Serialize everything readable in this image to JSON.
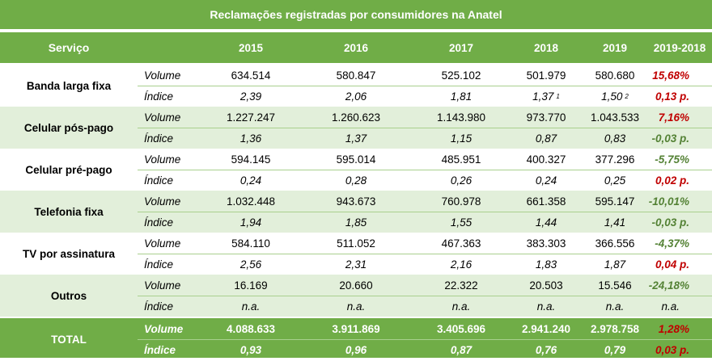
{
  "title": "Reclamações registradas por consumidores na Anatel",
  "colors": {
    "header_green": "#70ad47",
    "shade_green": "#e2efda",
    "bad": "#c00000",
    "good": "#548235"
  },
  "header": {
    "service": "Serviço",
    "y2015": "2015",
    "y2016": "2016",
    "y2017": "2017",
    "y2018": "2018",
    "y2019": "2019",
    "change": "2019-2018"
  },
  "rows": [
    {
      "service": "Banda larga fixa",
      "volume_label": "Volume",
      "index_label": "Índice",
      "volume": [
        "634.514",
        "580.847",
        "525.102",
        "501.979",
        "580.680"
      ],
      "volume_change": "15,68%",
      "volume_change_status": "bad",
      "index": [
        "2,39",
        "2,06",
        "1,81",
        "1,37",
        "1,50"
      ],
      "index_note_2018": "1",
      "index_note_2019": "2",
      "index_change": "0,13 p.",
      "index_change_status": "bad"
    },
    {
      "service": "Celular pós-pago",
      "volume_label": "Volume",
      "index_label": "Índice",
      "volume": [
        "1.227.247",
        "1.260.623",
        "1.143.980",
        "973.770",
        "1.043.533"
      ],
      "volume_change": "7,16%",
      "volume_change_status": "bad",
      "index": [
        "1,36",
        "1,37",
        "1,15",
        "0,87",
        "0,83"
      ],
      "index_change": "-0,03 p.",
      "index_change_status": "good"
    },
    {
      "service": "Celular pré-pago",
      "volume_label": "Volume",
      "index_label": "Índice",
      "volume": [
        "594.145",
        "595.014",
        "485.951",
        "400.327",
        "377.296"
      ],
      "volume_change": "-5,75%",
      "volume_change_status": "good",
      "index": [
        "0,24",
        "0,28",
        "0,26",
        "0,24",
        "0,25"
      ],
      "index_change": "0,02 p.",
      "index_change_status": "bad"
    },
    {
      "service": "Telefonia fixa",
      "volume_label": "Volume",
      "index_label": "Índice",
      "volume": [
        "1.032.448",
        "943.673",
        "760.978",
        "661.358",
        "595.147"
      ],
      "volume_change": "-10,01%",
      "volume_change_status": "good",
      "index": [
        "1,94",
        "1,85",
        "1,55",
        "1,44",
        "1,41"
      ],
      "index_change": "-0,03 p.",
      "index_change_status": "good"
    },
    {
      "service": "TV por assinatura",
      "volume_label": "Volume",
      "index_label": "Índice",
      "volume": [
        "584.110",
        "511.052",
        "467.363",
        "383.303",
        "366.556"
      ],
      "volume_change": "-4,37%",
      "volume_change_status": "good",
      "index": [
        "2,56",
        "2,31",
        "2,16",
        "1,83",
        "1,87"
      ],
      "index_change": "0,04 p.",
      "index_change_status": "bad"
    },
    {
      "service": "Outros",
      "volume_label": "Volume",
      "index_label": "Índice",
      "volume": [
        "16.169",
        "20.660",
        "22.322",
        "20.503",
        "15.546"
      ],
      "volume_change": "-24,18%",
      "volume_change_status": "good",
      "index": [
        "n.a.",
        "n.a.",
        "n.a.",
        "n.a.",
        "n.a."
      ],
      "index_change": "n.a.",
      "index_change_status": "neutral"
    }
  ],
  "total": {
    "service": "TOTAL",
    "volume_label": "Volume",
    "index_label": "Índice",
    "volume": [
      "4.088.633",
      "3.911.869",
      "3.405.696",
      "2.941.240",
      "2.978.758"
    ],
    "volume_change": "1,28%",
    "volume_change_status": "bad",
    "index": [
      "0,93",
      "0,96",
      "0,87",
      "0,76",
      "0,79"
    ],
    "index_change": "0,03 p.",
    "index_change_status": "bad"
  }
}
